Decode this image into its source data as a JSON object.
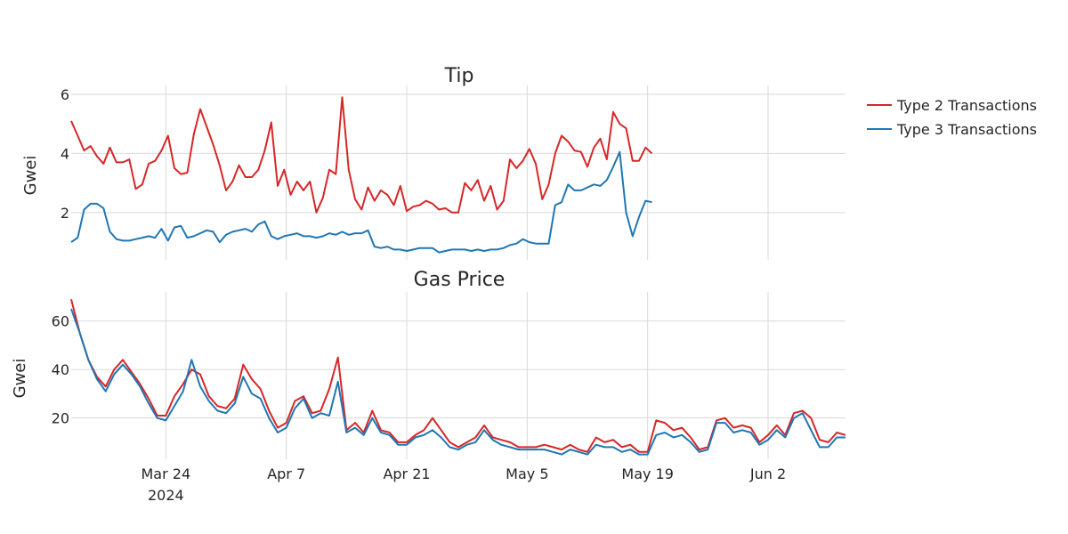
{
  "colors": {
    "type2": "#d62728",
    "type3": "#1f77b4",
    "grid": "#d9d9d9",
    "background": "#ffffff"
  },
  "legend": {
    "placement": "right",
    "items": [
      "Type 2 Transactions",
      "Type 3 Transactions"
    ]
  },
  "x_axis": {
    "ticks": [
      {
        "date": "2024-03-24",
        "label": "Mar 24",
        "sublabel": "2024"
      },
      {
        "date": "2024-04-07",
        "label": "Apr 7",
        "sublabel": ""
      },
      {
        "date": "2024-04-21",
        "label": "Apr 21",
        "sublabel": ""
      },
      {
        "date": "2024-05-05",
        "label": "May 5",
        "sublabel": ""
      },
      {
        "date": "2024-05-19",
        "label": "May 19",
        "sublabel": ""
      },
      {
        "date": "2024-06-02",
        "label": "Jun 2",
        "sublabel": ""
      }
    ],
    "range": [
      "2024-03-13",
      "2024-06-11"
    ]
  },
  "chart_data": [
    {
      "type": "line",
      "title": "Tip",
      "ylabel": "Gwei",
      "xlabel": "",
      "ylim": [
        0.4,
        6.3
      ],
      "yticks": [
        2,
        4,
        6
      ],
      "grid": true,
      "x_start": "2024-03-13",
      "x_step_days": 0.75,
      "series": [
        {
          "name": "Type 2 Transactions",
          "color": "#d62728",
          "values": [
            5.1,
            4.6,
            4.1,
            4.25,
            3.9,
            3.65,
            4.2,
            3.7,
            3.7,
            3.8,
            2.8,
            2.95,
            3.65,
            3.75,
            4.1,
            4.6,
            3.5,
            3.3,
            3.35,
            4.65,
            5.5,
            4.9,
            4.3,
            3.6,
            2.75,
            3.05,
            3.6,
            3.2,
            3.2,
            3.45,
            4.1,
            5.05,
            2.9,
            3.45,
            2.6,
            3.05,
            2.75,
            3.05,
            2.0,
            2.5,
            3.45,
            3.3,
            5.9,
            3.45,
            2.45,
            2.1,
            2.85,
            2.4,
            2.75,
            2.6,
            2.25,
            2.9,
            2.05,
            2.2,
            2.25,
            2.4,
            2.3,
            2.1,
            2.15,
            2.0,
            2.0,
            3.0,
            2.75,
            3.1,
            2.4,
            2.9,
            2.1,
            2.4,
            3.8,
            3.5,
            3.75,
            4.15,
            3.65,
            2.45,
            2.95,
            4.0,
            4.6,
            4.4,
            4.1,
            4.05,
            3.55,
            4.2,
            4.5,
            3.8,
            5.4,
            5.0,
            4.85,
            3.75,
            3.75,
            4.2,
            4.0
          ]
        },
        {
          "name": "Type 3 Transactions",
          "color": "#1f77b4",
          "values": [
            1.0,
            1.15,
            2.1,
            2.3,
            2.3,
            2.15,
            1.35,
            1.1,
            1.05,
            1.05,
            1.1,
            1.15,
            1.2,
            1.15,
            1.45,
            1.05,
            1.5,
            1.55,
            1.15,
            1.2,
            1.3,
            1.4,
            1.35,
            1.0,
            1.25,
            1.35,
            1.4,
            1.45,
            1.35,
            1.6,
            1.7,
            1.2,
            1.1,
            1.2,
            1.25,
            1.3,
            1.2,
            1.2,
            1.15,
            1.2,
            1.3,
            1.25,
            1.35,
            1.25,
            1.3,
            1.3,
            1.4,
            0.85,
            0.8,
            0.85,
            0.75,
            0.75,
            0.7,
            0.75,
            0.8,
            0.8,
            0.8,
            0.65,
            0.7,
            0.75,
            0.75,
            0.75,
            0.7,
            0.75,
            0.7,
            0.75,
            0.75,
            0.8,
            0.9,
            0.95,
            1.1,
            1.0,
            0.95,
            0.95,
            0.95,
            2.25,
            2.35,
            2.95,
            2.75,
            2.75,
            2.85,
            2.95,
            2.9,
            3.1,
            3.55,
            4.05,
            2.0,
            1.2,
            1.85,
            2.4,
            2.35
          ]
        }
      ]
    },
    {
      "type": "line",
      "title": "Gas Price",
      "ylabel": "Gwei",
      "xlabel": "",
      "ylim": [
        3,
        72
      ],
      "yticks": [
        20,
        40,
        60
      ],
      "grid": true,
      "x_start": "2024-03-13",
      "x_step_days": 1,
      "series": [
        {
          "name": "Type 2 Transactions",
          "color": "#d62728",
          "values": [
            69,
            55,
            44,
            37,
            33,
            40,
            44,
            39,
            34,
            28,
            21,
            21,
            29,
            34,
            40,
            38,
            29,
            25,
            24,
            28,
            42,
            36,
            32,
            23,
            16,
            18,
            27,
            29,
            22,
            23,
            32,
            45,
            15,
            18,
            14,
            23,
            15,
            14,
            10,
            10,
            13,
            15,
            20,
            15,
            10,
            8,
            10,
            12,
            17,
            12,
            11,
            10,
            8,
            8,
            8,
            9,
            8,
            7,
            9,
            7,
            6,
            12,
            10,
            11,
            8,
            9,
            6,
            6,
            19,
            18,
            15,
            16,
            12,
            7,
            8,
            19,
            20,
            16,
            17,
            16,
            10,
            13,
            17,
            13,
            22,
            23,
            20,
            11,
            10,
            14,
            13
          ]
        },
        {
          "name": "Type 3 Transactions",
          "color": "#1f77b4",
          "values": [
            65,
            55,
            44,
            36,
            31,
            38,
            42,
            38,
            33,
            26,
            20,
            19,
            25,
            31,
            44,
            33,
            27,
            23,
            22,
            26,
            37,
            30,
            28,
            20,
            14,
            16,
            24,
            28,
            20,
            22,
            21,
            35,
            14,
            16,
            13,
            20,
            14,
            13,
            9,
            9,
            12,
            13,
            15,
            12,
            8,
            7,
            9,
            10,
            15,
            11,
            9,
            8,
            7,
            7,
            7,
            7,
            6,
            5,
            7,
            6,
            5,
            9,
            8,
            8,
            6,
            7,
            5,
            5,
            13,
            14,
            12,
            13,
            10,
            6,
            7,
            18,
            18,
            14,
            15,
            14,
            9,
            11,
            15,
            12,
            20,
            22,
            15,
            8,
            8,
            12,
            12
          ]
        }
      ]
    }
  ]
}
